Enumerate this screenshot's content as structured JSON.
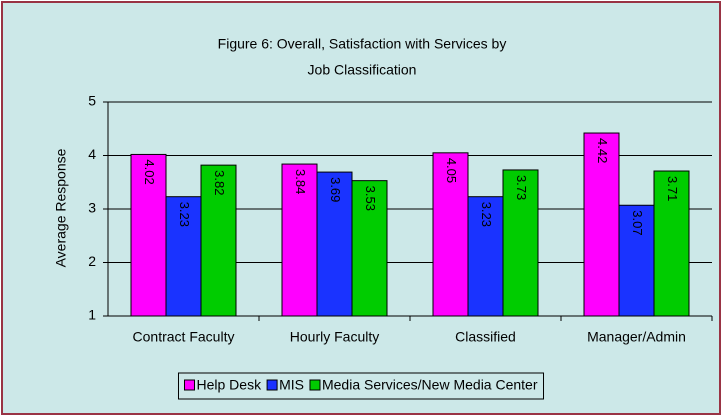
{
  "chart_data": {
    "type": "bar",
    "title": [
      "Figure 6: Overall, Satisfaction with Services by",
      "Job Classification"
    ],
    "y_label": "Average Response",
    "categories": [
      "Contract Faculty",
      "Hourly Faculty",
      "Classified",
      "Manager/Admin"
    ],
    "series": [
      {
        "name": "Help Desk",
        "color": "#ff00ff",
        "values": [
          4.02,
          3.84,
          4.05,
          4.42
        ]
      },
      {
        "name": "MIS",
        "color": "#1a33ff",
        "values": [
          3.23,
          3.69,
          3.23,
          3.07
        ]
      },
      {
        "name": "Media Services/New Media Center",
        "color": "#00cc00",
        "values": [
          3.82,
          3.53,
          3.73,
          3.71
        ]
      }
    ],
    "ylim": [
      1,
      5
    ],
    "yticks": [
      1,
      2,
      3,
      4,
      5
    ],
    "grid": true,
    "legend": "bottom"
  }
}
